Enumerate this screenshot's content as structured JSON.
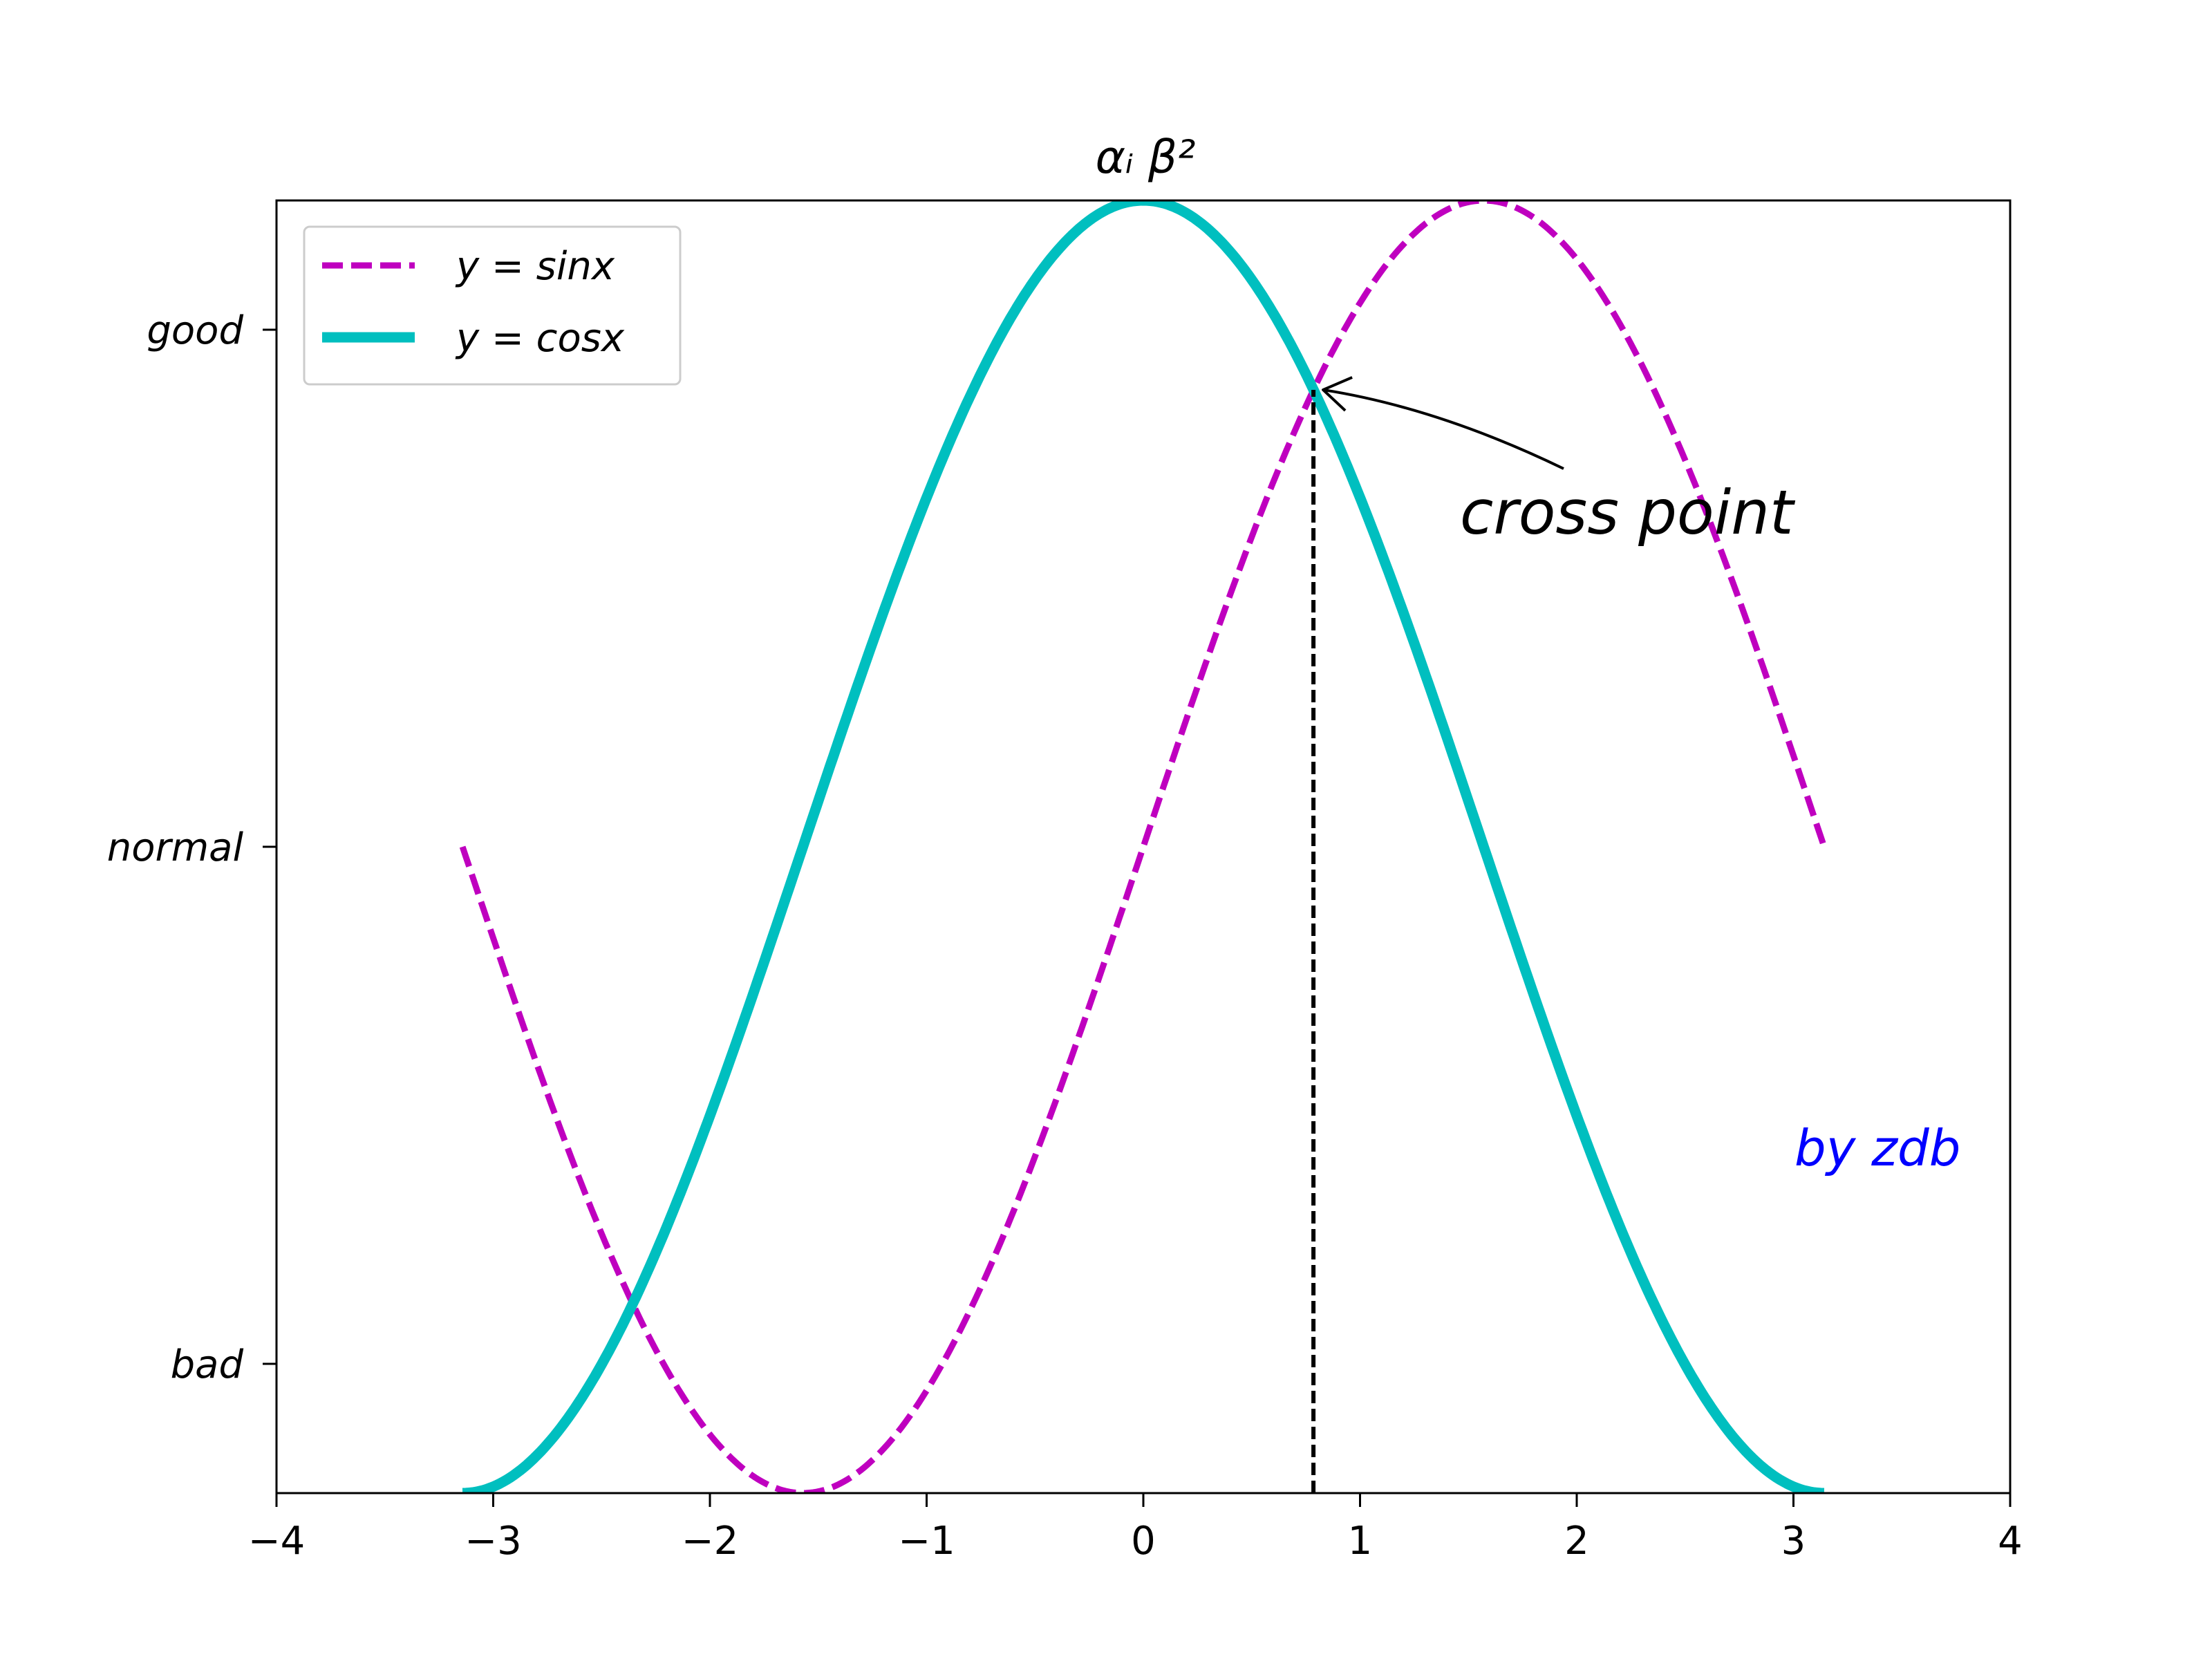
{
  "chart_data": {
    "type": "line",
    "title": "αᵢ β²",
    "xlim": [
      -4,
      4
    ],
    "ylim": [
      -1,
      1
    ],
    "x_ticks": [
      -4,
      -3,
      -2,
      -1,
      0,
      1,
      2,
      3,
      4
    ],
    "x_tick_labels": [
      "−4",
      "−3",
      "−2",
      "−1",
      "0",
      "1",
      "2",
      "3",
      "4"
    ],
    "y_ticks": [
      -0.8,
      0.0,
      0.8
    ],
    "y_tick_labels": [
      "bad",
      "normal",
      "good"
    ],
    "x": [
      -3.1416,
      -2.9452,
      -2.7489,
      -2.5525,
      -2.3562,
      -2.1598,
      -1.9635,
      -1.7671,
      -1.5708,
      -1.3744,
      -1.1781,
      -0.9817,
      -0.7854,
      -0.589,
      -0.3927,
      -0.1963,
      0.0,
      0.1963,
      0.3927,
      0.589,
      0.7854,
      0.9817,
      1.1781,
      1.3744,
      1.5708,
      1.7671,
      1.9635,
      2.1598,
      2.3562,
      2.5525,
      2.7489,
      2.9452,
      3.1416
    ],
    "series": [
      {
        "name": "y = sinx",
        "style": "dashed",
        "color": "#bf00bf",
        "values": [
          0.0,
          -0.1951,
          -0.3827,
          -0.5556,
          -0.7071,
          -0.8315,
          -0.9239,
          -0.9808,
          -1.0,
          -0.9808,
          -0.9239,
          -0.8315,
          -0.7071,
          -0.5556,
          -0.3827,
          -0.1951,
          0.0,
          0.1951,
          0.3827,
          0.5556,
          0.7071,
          0.8315,
          0.9239,
          0.9808,
          1.0,
          0.9808,
          0.9239,
          0.8315,
          0.7071,
          0.5556,
          0.3827,
          0.1951,
          0.0
        ]
      },
      {
        "name": "y = cosx",
        "style": "solid",
        "color": "#00bfbf",
        "values": [
          -1.0,
          -0.9808,
          -0.9239,
          -0.8315,
          -0.7071,
          -0.5556,
          -0.3827,
          -0.1951,
          0.0,
          0.1951,
          0.3827,
          0.5556,
          0.7071,
          0.8315,
          0.9239,
          0.9808,
          1.0,
          0.9808,
          0.9239,
          0.8315,
          0.7071,
          0.5556,
          0.3827,
          0.1951,
          0.0,
          -0.1951,
          -0.3827,
          -0.5556,
          -0.7071,
          -0.8315,
          -0.9239,
          -0.9808,
          -1.0
        ]
      }
    ],
    "vline": {
      "x": 0.785,
      "y_from": -1.0,
      "y_to": 0.707,
      "style": "dashed",
      "color": "#000000"
    },
    "annotation": {
      "text": "cross point",
      "point": [
        0.785,
        0.707
      ]
    },
    "signature": {
      "text": "by zdb",
      "color": "#0000ff"
    },
    "legend": {
      "placement": "upper-left"
    },
    "grid": false
  }
}
